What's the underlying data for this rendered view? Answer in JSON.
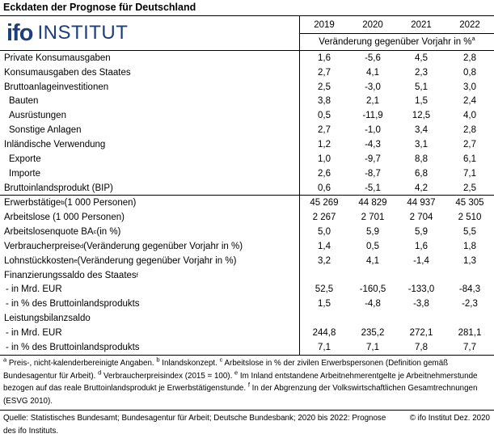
{
  "title": "Eckdaten der Prognose für Deutschland",
  "logo": {
    "ifo": "ifo",
    "institut": "INSTITUT",
    "color": "#1c3e7d"
  },
  "table": {
    "years": [
      "2019",
      "2020",
      "2021",
      "2022"
    ],
    "unit_header": "Veränderung gegenüber Vorjahr in %",
    "unit_header_sup": "a",
    "rows": [
      {
        "pre": "Private Konsumausgaben",
        "sup": "",
        "post": "",
        "indent": 0,
        "divider_after": false,
        "values": [
          "1,6",
          "-5,6",
          "4,5",
          "2,8"
        ]
      },
      {
        "pre": "Konsumausgaben des Staates",
        "sup": "",
        "post": "",
        "indent": 0,
        "divider_after": false,
        "values": [
          "2,7",
          "4,1",
          "2,3",
          "0,8"
        ]
      },
      {
        "pre": "Bruttoanlageinvestitionen",
        "sup": "",
        "post": "",
        "indent": 0,
        "divider_after": false,
        "values": [
          "2,5",
          "-3,0",
          "5,1",
          "3,0"
        ]
      },
      {
        "pre": "Bauten",
        "sup": "",
        "post": "",
        "indent": 1,
        "divider_after": false,
        "values": [
          "3,8",
          "2,1",
          "1,5",
          "2,4"
        ]
      },
      {
        "pre": "Ausrüstungen",
        "sup": "",
        "post": "",
        "indent": 1,
        "divider_after": false,
        "values": [
          "0,5",
          "-11,9",
          "12,5",
          "4,0"
        ]
      },
      {
        "pre": "Sonstige Anlagen",
        "sup": "",
        "post": "",
        "indent": 1,
        "divider_after": false,
        "values": [
          "2,7",
          "-1,0",
          "3,4",
          "2,8"
        ]
      },
      {
        "pre": "Inländische Verwendung",
        "sup": "",
        "post": "",
        "indent": 0,
        "divider_after": false,
        "values": [
          "1,2",
          "-4,3",
          "3,1",
          "2,7"
        ]
      },
      {
        "pre": "Exporte",
        "sup": "",
        "post": "",
        "indent": 1,
        "divider_after": false,
        "values": [
          "1,0",
          "-9,7",
          "8,8",
          "6,1"
        ]
      },
      {
        "pre": "Importe",
        "sup": "",
        "post": "",
        "indent": 1,
        "divider_after": false,
        "values": [
          "2,6",
          "-8,7",
          "6,8",
          "7,1"
        ]
      },
      {
        "pre": "Bruttoinlandsprodukt (BIP)",
        "sup": "",
        "post": "",
        "indent": 0,
        "divider_after": true,
        "values": [
          "0,6",
          "-5,1",
          "4,2",
          "2,5"
        ]
      },
      {
        "pre": "Erwerbstätige",
        "sup": "b",
        "post": " (1 000 Personen)",
        "indent": 0,
        "divider_after": false,
        "values": [
          "45 269",
          "44 829",
          "44 937",
          "45 305"
        ]
      },
      {
        "pre": "Arbeitslose (1 000 Personen)",
        "sup": "",
        "post": "",
        "indent": 0,
        "divider_after": false,
        "values": [
          "2 267",
          "2 701",
          "2 704",
          "2 510"
        ]
      },
      {
        "pre": "Arbeitslosenquote BA",
        "sup": "c",
        "post": " (in %)",
        "indent": 0,
        "divider_after": false,
        "values": [
          "5,0",
          "5,9",
          "5,9",
          "5,5"
        ]
      },
      {
        "pre": "Verbraucherpreise",
        "sup": "d",
        "post": " (Veränderung gegenüber Vorjahr in %)",
        "indent": 0,
        "divider_after": false,
        "values": [
          "1,4",
          "0,5",
          "1,6",
          "1,8"
        ]
      },
      {
        "pre": "Lohnstückkosten",
        "sup": "e",
        "post": " (Veränderung gegenüber Vorjahr in %)",
        "indent": 0,
        "divider_after": false,
        "values": [
          "3,2",
          "4,1",
          "-1,4",
          "1,3"
        ]
      },
      {
        "pre": "Finanzierungssaldo des Staates",
        "sup": "f",
        "post": "",
        "indent": 0,
        "divider_after": false,
        "values": [
          "",
          "",
          "",
          ""
        ]
      },
      {
        "pre": "- in Mrd. EUR",
        "sup": "",
        "post": "",
        "indent": 2,
        "divider_after": false,
        "values": [
          "52,5",
          "-160,5",
          "-133,0",
          "-84,3"
        ]
      },
      {
        "pre": "- in % des Bruttoinlandsprodukts",
        "sup": "",
        "post": "",
        "indent": 2,
        "divider_after": false,
        "values": [
          "1,5",
          "-4,8",
          "-3,8",
          "-2,3"
        ]
      },
      {
        "pre": "Leistungsbilanzsaldo",
        "sup": "",
        "post": "",
        "indent": 0,
        "divider_after": false,
        "values": [
          "",
          "",
          "",
          ""
        ]
      },
      {
        "pre": "- in Mrd. EUR",
        "sup": "",
        "post": "",
        "indent": 2,
        "divider_after": false,
        "values": [
          "244,8",
          "235,2",
          "272,1",
          "281,1"
        ]
      },
      {
        "pre": "- in % des Bruttoinlandsprodukts",
        "sup": "",
        "post": "",
        "indent": 2,
        "divider_after": false,
        "values": [
          "7,1",
          "7,1",
          "7,8",
          "7,7"
        ]
      }
    ]
  },
  "footnotes": [
    {
      "sup": "a",
      "text": " Preis-, nicht-kalenderbereinigte Angaben. "
    },
    {
      "sup": "b",
      "text": " Inlandskonzept. "
    },
    {
      "sup": "c",
      "text": " Arbeitslose in % der zivilen Erwerbspersonen (Definition gemäß Bundesagentur für Arbeit). "
    },
    {
      "sup": "d",
      "text": " Verbraucherpreisindex (2015 = 100). "
    },
    {
      "sup": "e",
      "text": " Im Inland entstandene Arbeitnehmerentgelte je Arbeitnehmerstunde bezogen auf das reale Bruttoinlandsprodukt je Erwerbstätigenstunde. "
    },
    {
      "sup": "f",
      "text": " In der Abgrenzung der Volkswirtschaftlichen Gesamtrechnungen (ESVG 2010)."
    }
  ],
  "source": {
    "left": "Quelle: Statistisches Bundesamt; Bundesagentur für Arbeit; Deutsche Bundesbank; 2020 bis 2022: Prognose des ifo Instituts.",
    "right": "© ifo Institut Dez. 2020"
  }
}
